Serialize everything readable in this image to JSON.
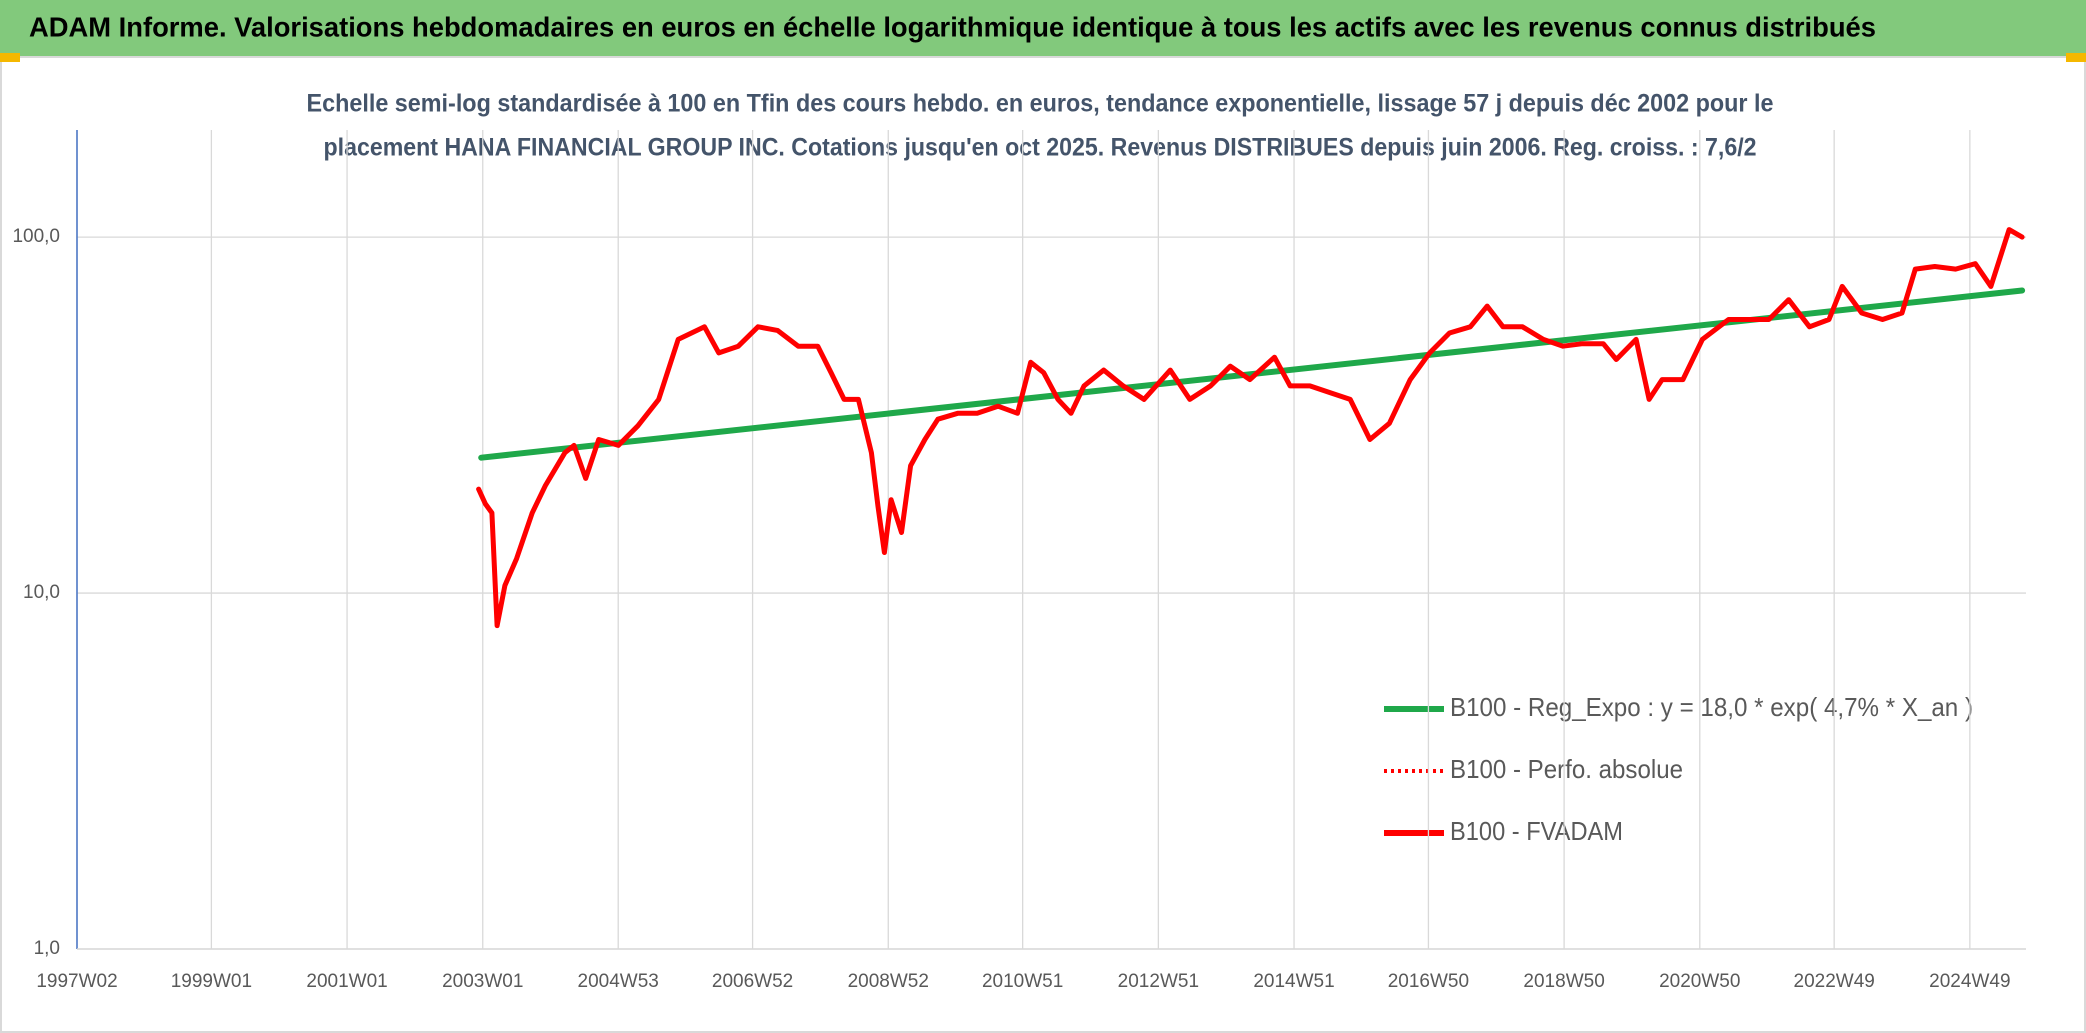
{
  "chart_data": {
    "type": "line",
    "title": "ADAM Informe. Valorisations hebdomadaires en euros en échelle logarithmique identique à tous les actifs avec les revenus connus distribués",
    "subtitle": [
      "Echelle semi-log standardisée à 100 en Tfin des cours hebdo. en euros, tendance exponentielle, lissage 57 j depuis déc 2002 pour le",
      "placement HANA FINANCIAL GROUP INC. Cotations jusqu'en oct 2025. Revenus DISTRIBUES depuis juin 2006. Reg. croiss. : 7,6/2"
    ],
    "log_scale": true,
    "grid": true,
    "xlim": [
      "1997W02",
      "2025W40"
    ],
    "xticks": [
      "1997W02",
      "1999W01",
      "2001W01",
      "2003W01",
      "2004W53",
      "2006W52",
      "2008W52",
      "2010W51",
      "2012W51",
      "2014W51",
      "2016W50",
      "2018W50",
      "2020W50",
      "2022W49",
      "2024W49"
    ],
    "ylim": [
      1,
      200
    ],
    "yticks": [
      {
        "value": 1,
        "label": "1,0"
      },
      {
        "value": 10,
        "label": "10,0"
      },
      {
        "value": 100,
        "label": "100,0"
      }
    ],
    "series": [
      {
        "name": "B100 - Reg_Expo : y = 18,0 * exp( 4,7% *  X_an )",
        "color": "#1fa84a",
        "style": "solid",
        "x": [
          "2002W52",
          "2025W37"
        ],
        "values": [
          24.0,
          70.8
        ]
      },
      {
        "name": "B100 - Perfo. absolue",
        "color": "#ff0000",
        "style": "dotted",
        "x": [],
        "values": []
      },
      {
        "name": "B100 - FVADAM",
        "color": "#ff0000",
        "style": "solid",
        "x": [
          "2002W50",
          "2003W03",
          "2003W08",
          "2003W12",
          "2003W18",
          "2003W27",
          "2003W39",
          "2003W49",
          "2004W12",
          "2004W19",
          "2004W28",
          "2004W38",
          "2005W01",
          "2005W16",
          "2005W32",
          "2005W47",
          "2006W05",
          "2006W15",
          "2006W26",
          "2006W41",
          "2007W04",
          "2007W19",
          "2007W35",
          "2007W50",
          "2008W08",
          "2008W18",
          "2008W29",
          "2008W39",
          "2008W44",
          "2008W49",
          "2009W02",
          "2009W10",
          "2009W17",
          "2009W28",
          "2009W38",
          "2010W01",
          "2010W16",
          "2010W32",
          "2010W47",
          "2011W05",
          "2011W15",
          "2011W26",
          "2011W36",
          "2011W46",
          "2012W09",
          "2012W24",
          "2012W40",
          "2013W08",
          "2013W23",
          "2013W39",
          "2014W02",
          "2014W17",
          "2014W36",
          "2014W48",
          "2015W11",
          "2015W27",
          "2015W42",
          "2016W05",
          "2016W20",
          "2016W36",
          "2016W51",
          "2017W14",
          "2017W30",
          "2017W43",
          "2018W03",
          "2018W18",
          "2018W34",
          "2018W49",
          "2019W12",
          "2019W28",
          "2019W38",
          "2020W01",
          "2020W11",
          "2020W21",
          "2020W37",
          "2020W52",
          "2021W20",
          "2021W36",
          "2021W51",
          "2022W14",
          "2022W30",
          "2022W45",
          "2023W03",
          "2023W18",
          "2023W34",
          "2023W49",
          "2024W07",
          "2024W22",
          "2024W38",
          "2025W01",
          "2025W13",
          "2025W27",
          "2025W37"
        ],
        "values": [
          19.6,
          17.8,
          16.8,
          8.1,
          10.5,
          12.5,
          16.8,
          20,
          24.8,
          26,
          21,
          27,
          26,
          29.5,
          35,
          51.6,
          53.8,
          56,
          47.3,
          49.4,
          56,
          54.7,
          49.4,
          49.4,
          41.6,
          35,
          35,
          24.8,
          17.6,
          13,
          18.3,
          14.8,
          22.8,
          27,
          30.8,
          32,
          32,
          33.5,
          32,
          44.5,
          41.6,
          35,
          32,
          38.2,
          42.3,
          38.2,
          35,
          42.3,
          35,
          38.2,
          43.4,
          39.8,
          46,
          38.2,
          38.2,
          36.5,
          35,
          27,
          30,
          39.8,
          47.3,
          53.8,
          56,
          64,
          56,
          56,
          51.6,
          49.4,
          50.2,
          50.2,
          45.3,
          51.6,
          35,
          39.8,
          39.8,
          51.6,
          58.7,
          58.7,
          58.7,
          66.7,
          56,
          58.7,
          72.7,
          61.2,
          58.7,
          61.2,
          81.3,
          82.7,
          81.3,
          84.2,
          72.7,
          105,
          100
        ]
      }
    ]
  }
}
